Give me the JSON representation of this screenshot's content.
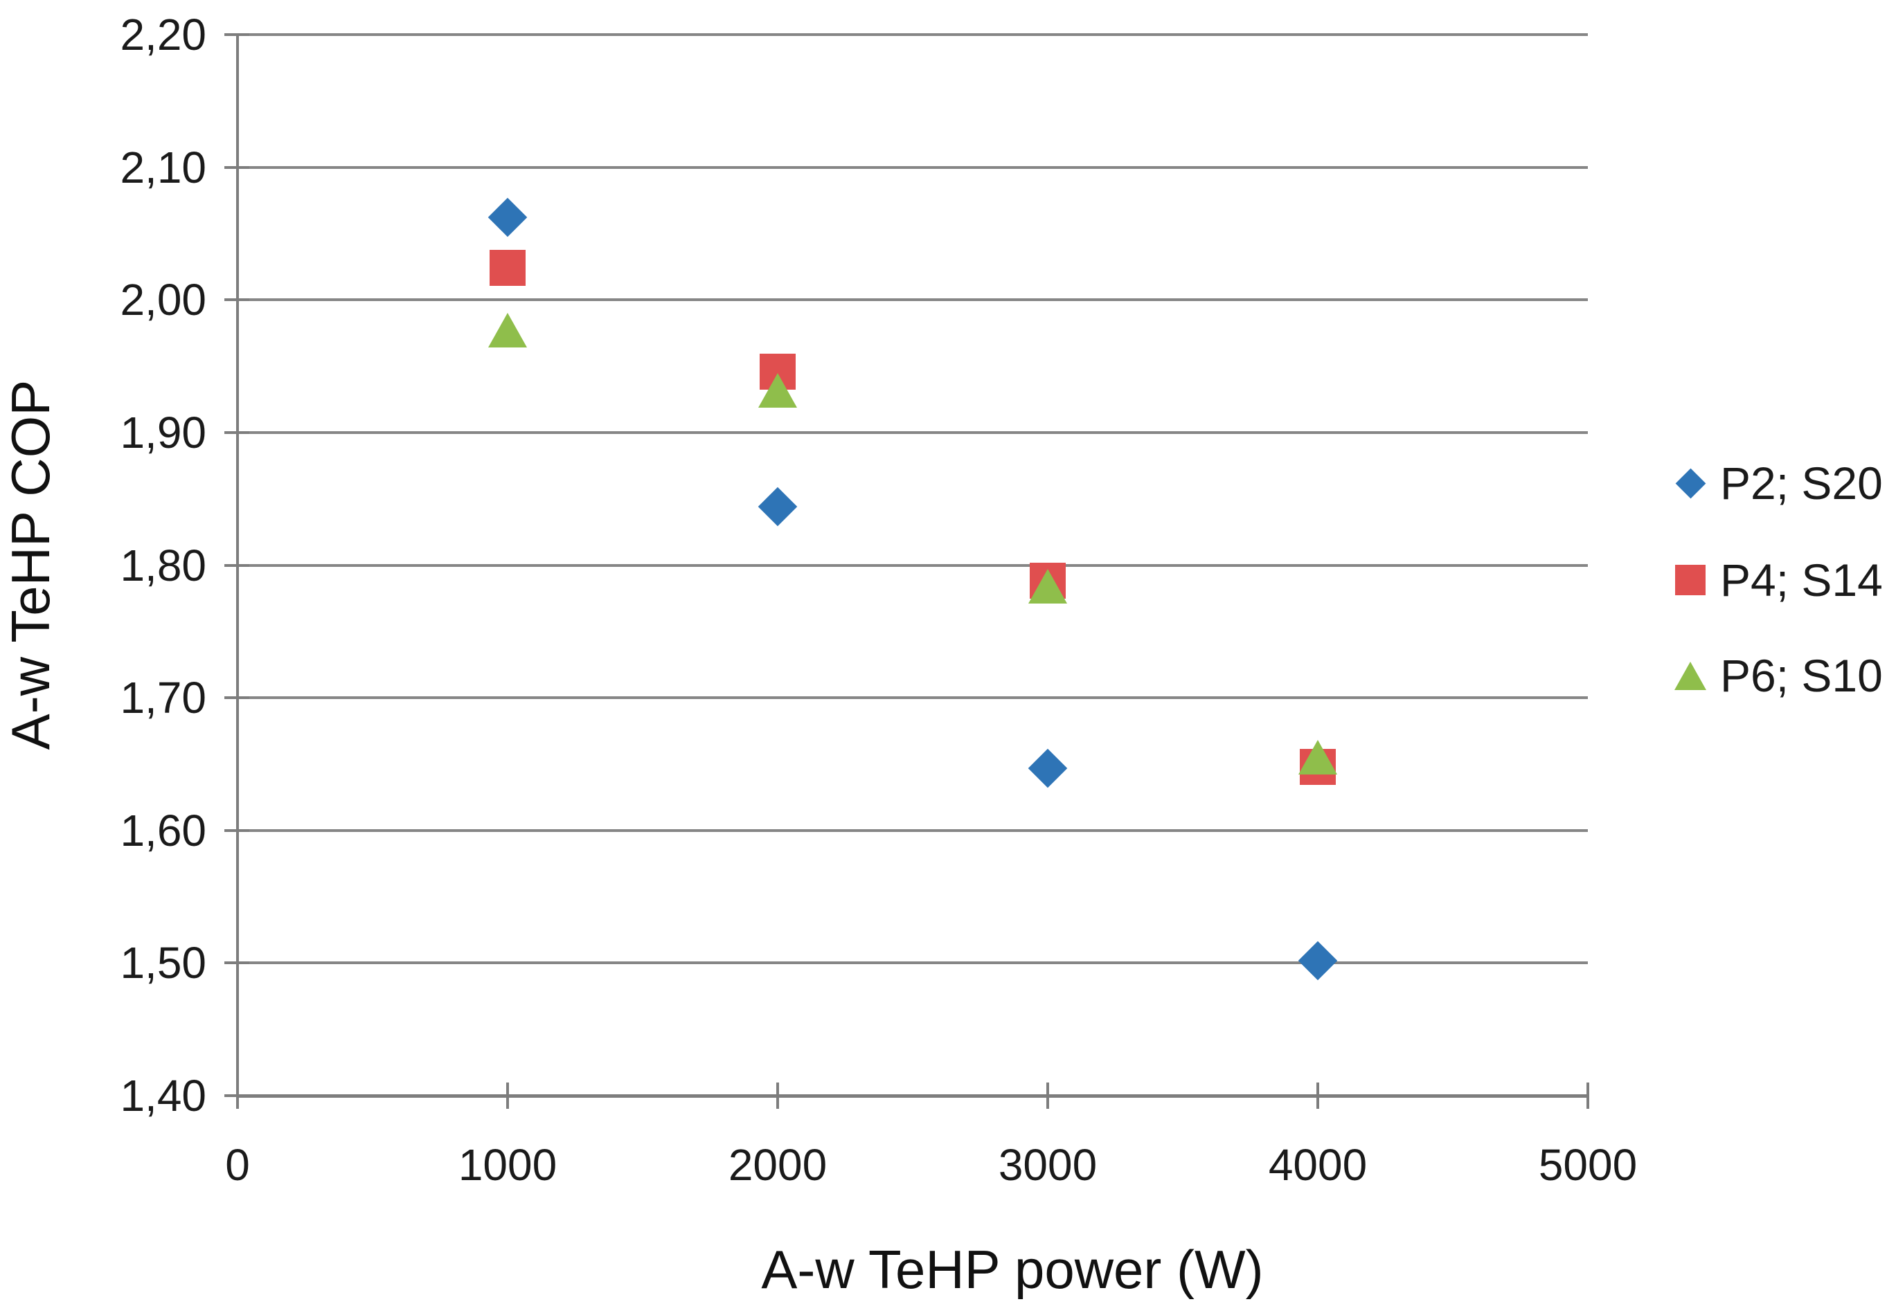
{
  "chart_data": {
    "type": "scatter",
    "title": "",
    "xlabel": "A-w TeHP power (W)",
    "ylabel": "A-w TeHP COP",
    "xlim": [
      0,
      5000
    ],
    "ylim": [
      1.4,
      2.2
    ],
    "x_ticks": [
      0,
      1000,
      2000,
      3000,
      4000,
      5000
    ],
    "x_tick_labels": [
      "0",
      "1000",
      "2000",
      "3000",
      "4000",
      "5000"
    ],
    "y_ticks": [
      2.2,
      2.1,
      2.0,
      1.9,
      1.8,
      1.7,
      1.6,
      1.5,
      1.4
    ],
    "y_tick_labels": [
      "2,20",
      "2,10",
      "2,00",
      "1,90",
      "1,80",
      "1,70",
      "1,60",
      "1,50",
      "1,40"
    ],
    "grid": "horizontal",
    "legend_position": "right",
    "series": [
      {
        "name": "P2; S20",
        "marker": "diamond",
        "color": "#2E74B6",
        "x": [
          1000,
          2000,
          3000,
          4000
        ],
        "y": [
          2.062,
          1.844,
          1.647,
          1.502
        ]
      },
      {
        "name": "P4; S14",
        "marker": "square",
        "color": "#E04F4F",
        "x": [
          1000,
          2000,
          3000,
          4000
        ],
        "y": [
          2.024,
          1.946,
          1.788,
          1.648
        ]
      },
      {
        "name": "P6; S10",
        "marker": "triangle",
        "color": "#8FBE4B",
        "x": [
          1000,
          2000,
          3000,
          4000
        ],
        "y": [
          1.977,
          1.932,
          1.784,
          1.655
        ]
      }
    ],
    "colors": {
      "gridline": "#868686",
      "axis": "#7d7d7d",
      "text": "#1a1a1a"
    }
  }
}
